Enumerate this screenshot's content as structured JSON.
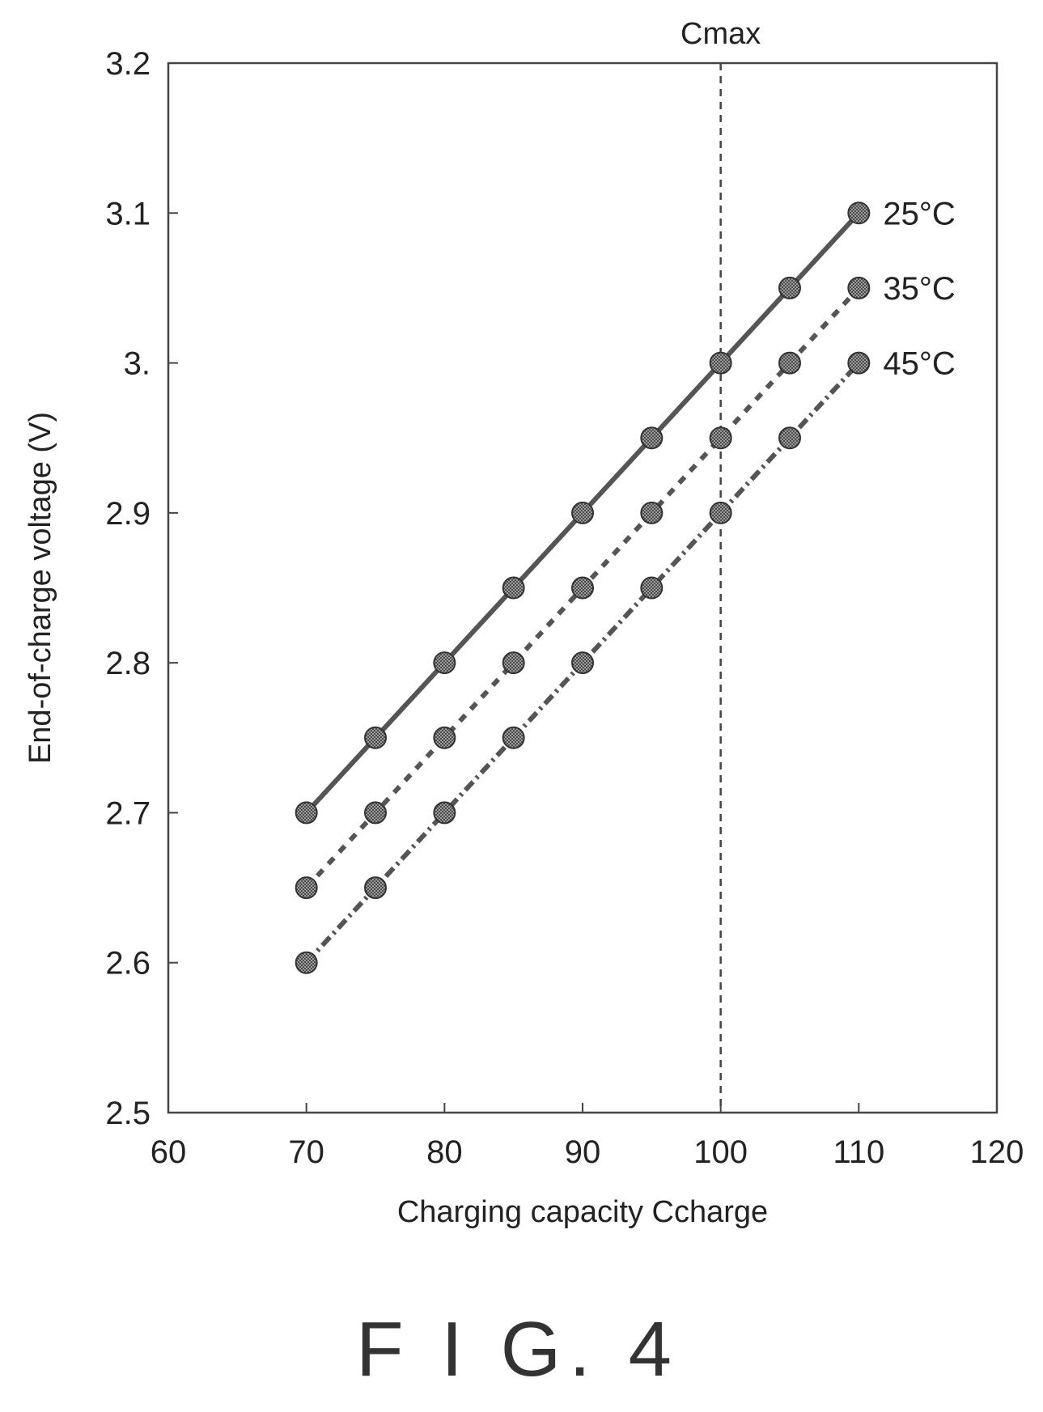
{
  "chart_data": {
    "type": "line",
    "xlabel": "Charging capacity Ccharge",
    "ylabel": "End-of-charge voltage (V)",
    "xlim": [
      60,
      120
    ],
    "ylim": [
      2.5,
      3.2
    ],
    "x_ticks": [
      60,
      70,
      80,
      90,
      100,
      110,
      120
    ],
    "y_ticks": [
      2.5,
      2.6,
      2.7,
      2.8,
      2.9,
      3.0,
      3.1,
      3.2
    ],
    "x_tick_labels": [
      "60",
      "70",
      "80",
      "90",
      "100",
      "110",
      "120"
    ],
    "y_tick_labels": [
      "2.5",
      "2.6",
      "2.7",
      "2.8",
      "2.9",
      "3.",
      "3.1",
      "3.2"
    ],
    "grid": false,
    "x": [
      70,
      75,
      80,
      85,
      90,
      95,
      100,
      105,
      110
    ],
    "series": [
      {
        "name": "25°C",
        "values": [
          2.7,
          2.75,
          2.8,
          2.85,
          2.9,
          2.95,
          3.0,
          3.05,
          3.1
        ],
        "line_style": "solid"
      },
      {
        "name": "35°C",
        "values": [
          2.65,
          2.7,
          2.75,
          2.8,
          2.85,
          2.9,
          2.95,
          3.0,
          3.05
        ],
        "line_style": "dashed"
      },
      {
        "name": "45°C",
        "values": [
          2.6,
          2.65,
          2.7,
          2.75,
          2.8,
          2.85,
          2.9,
          2.95,
          3.0
        ],
        "line_style": "dash-dot"
      }
    ],
    "reference_line": {
      "label": "Cmax",
      "x": 100
    },
    "caption": "F I G. 4"
  }
}
